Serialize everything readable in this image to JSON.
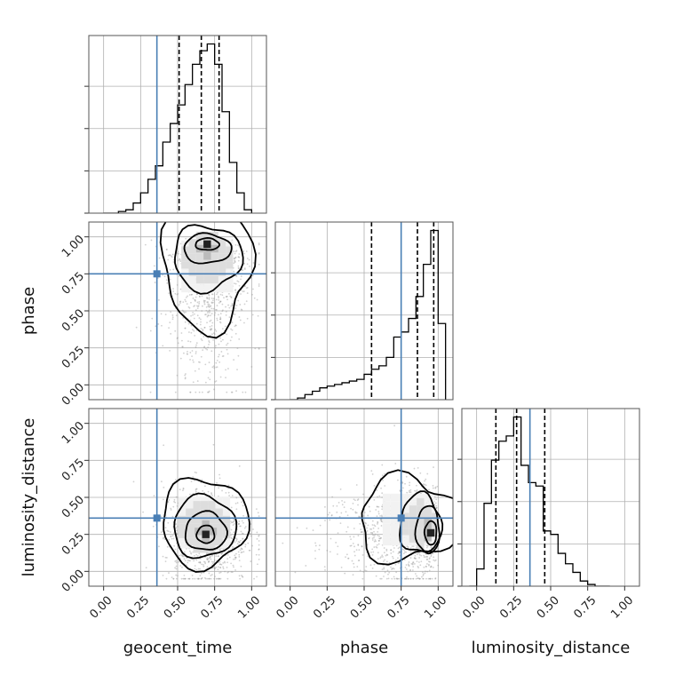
{
  "chart_data": {
    "type": "corner",
    "grid": true,
    "parameters": [
      "geocent_time",
      "phase",
      "luminosity_distance"
    ],
    "axis_range": [
      -0.1,
      1.1
    ],
    "tick_labels": [
      "0.00",
      "0.25",
      "0.50",
      "0.75",
      "1.00"
    ],
    "ticks": [
      0,
      0.25,
      0.5,
      0.75,
      1.0
    ],
    "truths": {
      "geocent_time": 0.36,
      "phase": 0.75,
      "luminosity_distance": 0.36
    },
    "colors": {
      "truth": "#4a7fb5",
      "hist": "#000000",
      "scatter": "#9a9a9a",
      "grid": "#b0b0b0"
    },
    "histograms": [
      {
        "param": "geocent_time",
        "quantiles": [
          0.51,
          0.66,
          0.78
        ],
        "bin_edges": [
          0.0,
          0.05,
          0.1,
          0.15,
          0.2,
          0.25,
          0.3,
          0.35,
          0.4,
          0.45,
          0.5,
          0.55,
          0.6,
          0.65,
          0.7,
          0.75,
          0.8,
          0.85,
          0.9,
          0.95,
          1.0
        ],
        "counts": [
          0,
          0,
          1,
          2,
          6,
          12,
          20,
          28,
          42,
          53,
          64,
          76,
          88,
          96,
          100,
          88,
          60,
          30,
          12,
          2
        ]
      },
      {
        "param": "phase",
        "quantiles": [
          0.55,
          0.86,
          0.97
        ],
        "bin_edges": [
          0.0,
          0.05,
          0.1,
          0.15,
          0.2,
          0.25,
          0.3,
          0.35,
          0.4,
          0.45,
          0.5,
          0.55,
          0.6,
          0.65,
          0.7,
          0.75,
          0.8,
          0.85,
          0.9,
          0.95,
          1.0,
          1.05
        ],
        "counts": [
          0,
          1,
          3,
          5,
          7,
          8,
          9,
          10,
          11,
          12,
          15,
          18,
          20,
          25,
          37,
          40,
          48,
          61,
          80,
          100,
          45
        ]
      },
      {
        "param": "luminosity_distance",
        "quantiles": [
          0.13,
          0.27,
          0.46
        ],
        "bin_edges": [
          -0.05,
          0.0,
          0.05,
          0.1,
          0.15,
          0.2,
          0.25,
          0.3,
          0.35,
          0.4,
          0.45,
          0.5,
          0.55,
          0.6,
          0.65,
          0.7,
          0.75,
          0.8,
          0.85,
          0.9
        ],
        "counts": [
          0,
          10,
          48,
          73,
          84,
          87,
          98,
          70,
          60,
          58,
          32,
          30,
          19,
          13,
          8,
          3,
          1,
          0,
          0
        ]
      }
    ],
    "pairs": [
      {
        "x": "geocent_time",
        "y": "phase",
        "peak": [
          0.7,
          0.95
        ]
      },
      {
        "x": "geocent_time",
        "y": "luminosity_distance",
        "peak": [
          0.69,
          0.25
        ]
      },
      {
        "x": "phase",
        "y": "luminosity_distance",
        "peak": [
          0.95,
          0.26
        ]
      }
    ]
  }
}
